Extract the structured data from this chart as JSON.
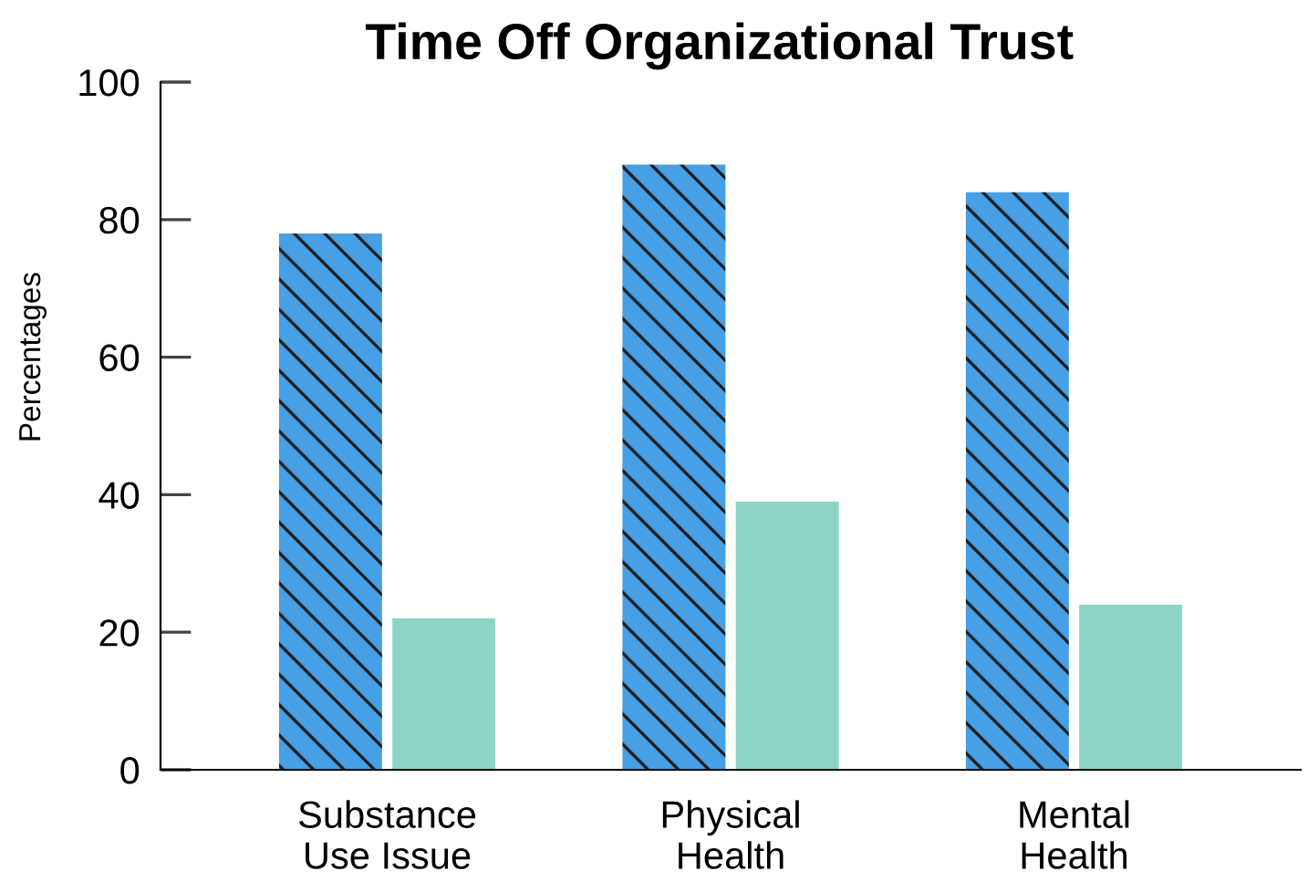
{
  "chart_data": {
    "type": "bar",
    "title": "Time Off Organizational Trust",
    "ylabel": "Percentages",
    "categories": [
      "Substance\nUse Issue",
      "Physical\nHealth",
      "Mental\nHealth"
    ],
    "series": [
      {
        "color": "#479fe5",
        "values": [
          78,
          88,
          84
        ]
      },
      {
        "color": "#8fd5c5",
        "values": [
          22,
          39,
          24
        ]
      }
    ],
    "ylim": [
      0,
      100
    ],
    "yticks": [
      0,
      20,
      40,
      60,
      80,
      100
    ],
    "grid": false,
    "legend": false
  }
}
